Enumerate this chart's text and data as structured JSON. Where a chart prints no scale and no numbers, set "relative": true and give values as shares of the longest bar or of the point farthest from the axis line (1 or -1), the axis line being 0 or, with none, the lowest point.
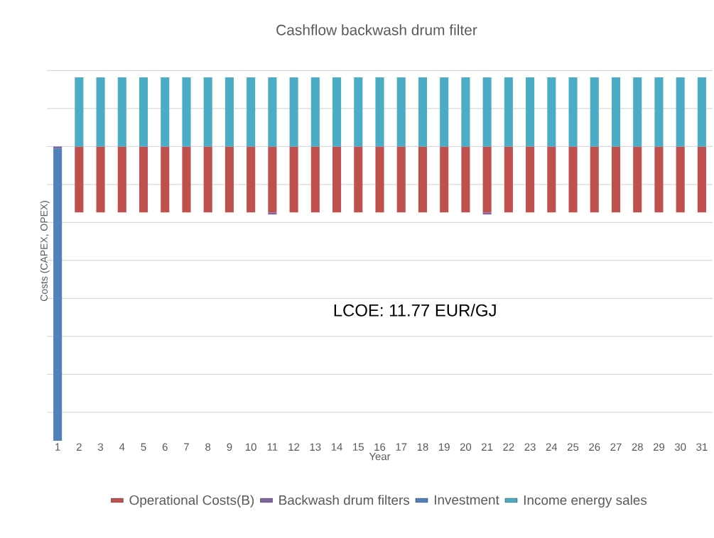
{
  "chart_data": {
    "type": "bar",
    "title": "Cashflow backwash drum filter",
    "xlabel": "Year",
    "ylabel": "Costs (CAPEX, OPEX)",
    "categories": [
      "1",
      "2",
      "3",
      "4",
      "5",
      "6",
      "7",
      "8",
      "9",
      "10",
      "11",
      "12",
      "13",
      "14",
      "15",
      "16",
      "17",
      "18",
      "19",
      "20",
      "21",
      "22",
      "23",
      "24",
      "25",
      "26",
      "27",
      "28",
      "29",
      "30",
      "31"
    ],
    "stacked": true,
    "relative": true,
    "grid": "y",
    "legend": "bottom",
    "series": [
      {
        "name": "Operational Costs(B)",
        "color": "#c0504d",
        "values": [
          0,
          -0.224,
          -0.224,
          -0.224,
          -0.224,
          -0.224,
          -0.224,
          -0.224,
          -0.224,
          -0.224,
          -0.224,
          -0.224,
          -0.224,
          -0.224,
          -0.224,
          -0.224,
          -0.224,
          -0.224,
          -0.224,
          -0.224,
          -0.224,
          -0.224,
          -0.224,
          -0.224,
          -0.224,
          -0.224,
          -0.224,
          -0.224,
          -0.224,
          -0.224,
          -0.224
        ]
      },
      {
        "name": "Backwash drum filters",
        "color": "#8064a2",
        "values": [
          -0.007,
          0,
          0,
          0,
          0,
          0,
          0,
          0,
          0,
          0,
          -0.007,
          0,
          0,
          0,
          0,
          0,
          0,
          0,
          0,
          0,
          -0.007,
          0,
          0,
          0,
          0,
          0,
          0,
          0,
          0,
          0,
          0
        ]
      },
      {
        "name": "Investment",
        "color": "#4f81bd",
        "values": [
          -0.993,
          0,
          0,
          0,
          0,
          0,
          0,
          0,
          0,
          0,
          0,
          0,
          0,
          0,
          0,
          0,
          0,
          0,
          0,
          0,
          0,
          0,
          0,
          0,
          0,
          0,
          0,
          0,
          0,
          0,
          0
        ]
      },
      {
        "name": "Income energy sales",
        "color": "#4bacc6",
        "values": [
          0,
          0.235,
          0.235,
          0.235,
          0.235,
          0.235,
          0.235,
          0.235,
          0.235,
          0.235,
          0.235,
          0.235,
          0.235,
          0.235,
          0.235,
          0.235,
          0.235,
          0.235,
          0.235,
          0.235,
          0.235,
          0.235,
          0.235,
          0.235,
          0.235,
          0.235,
          0.235,
          0.235,
          0.235,
          0.235,
          0.235
        ]
      }
    ],
    "annotations": [
      "LCOE: 11.77 EUR/GJ"
    ]
  }
}
